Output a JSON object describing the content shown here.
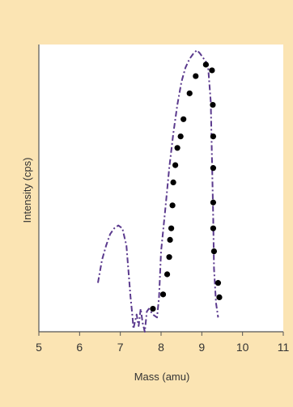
{
  "chart_data": {
    "type": "line",
    "title": "",
    "xlabel": "Mass (amu)",
    "ylabel": "Intensity (cps)",
    "xlim": [
      5,
      11
    ],
    "x_ticks": [
      5,
      6,
      7,
      8,
      9,
      10,
      11
    ],
    "x_tick_labels": [
      "5",
      "6",
      "7",
      "8",
      "9",
      "10",
      "11"
    ],
    "ylim": [
      0,
      1
    ],
    "grid": false,
    "legend": "none",
    "colors": {
      "background": "#fbe4b3",
      "plot_area": "#ffffff",
      "line": "#5b3a8e",
      "marker": "#000000",
      "text": "#333333"
    },
    "series": [
      {
        "style": "dash-dot line",
        "x": [
          6.45,
          6.55,
          6.65,
          6.75,
          6.85,
          6.95,
          7.05,
          7.15,
          7.25,
          7.3,
          7.32,
          7.4,
          7.45,
          7.5,
          7.55,
          7.6,
          7.65,
          7.7,
          7.8,
          7.9,
          7.95,
          8.0,
          8.1,
          8.2,
          8.3,
          8.4,
          8.5,
          8.6,
          8.7,
          8.8,
          8.88,
          8.95,
          9.05,
          9.15,
          9.22,
          9.25,
          9.28,
          9.3,
          9.35,
          9.4
        ],
        "y": [
          0.17,
          0.25,
          0.3,
          0.34,
          0.36,
          0.37,
          0.36,
          0.3,
          0.12,
          0.05,
          0.01,
          0.06,
          0.02,
          0.08,
          0.03,
          0.0,
          0.07,
          0.08,
          0.06,
          0.05,
          0.12,
          0.28,
          0.42,
          0.57,
          0.69,
          0.79,
          0.87,
          0.92,
          0.95,
          0.97,
          0.98,
          0.97,
          0.95,
          0.93,
          0.8,
          0.6,
          0.4,
          0.22,
          0.1,
          0.05
        ]
      },
      {
        "style": "markers",
        "x": [
          7.8,
          8.05,
          8.15,
          8.2,
          8.22,
          8.25,
          8.28,
          8.3,
          8.35,
          8.4,
          8.48,
          8.55,
          8.7,
          8.85,
          9.1,
          9.25,
          9.27,
          9.28,
          9.28,
          9.28,
          9.28,
          9.3,
          9.4,
          9.43
        ],
        "y": [
          0.08,
          0.13,
          0.2,
          0.26,
          0.32,
          0.36,
          0.44,
          0.52,
          0.58,
          0.64,
          0.68,
          0.74,
          0.83,
          0.89,
          0.93,
          0.91,
          0.79,
          0.68,
          0.57,
          0.45,
          0.36,
          0.28,
          0.17,
          0.12
        ]
      }
    ]
  }
}
